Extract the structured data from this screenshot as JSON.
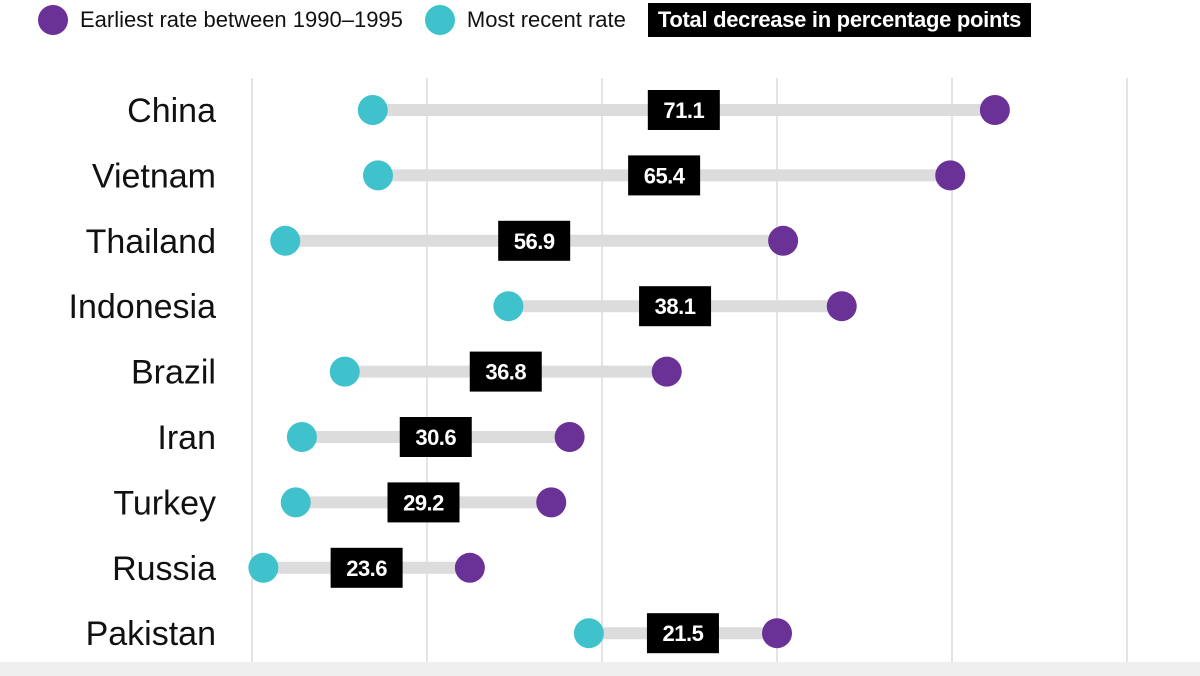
{
  "legend": {
    "earliest_label": "Earliest rate between 1990–1995",
    "recent_label": "Most recent rate",
    "decrease_label": "Total decrease in percentage points"
  },
  "colors": {
    "earliest": "#6a3196",
    "recent": "#40c2cc",
    "connector": "#dcdcdc",
    "label_box": "#000000",
    "gridline": "#dcdcdc"
  },
  "chart_data": {
    "type": "dumbbell",
    "title": "",
    "xlabel": "",
    "ylabel": "",
    "xlim": [
      0,
      100
    ],
    "grid": true,
    "legend_position": "top-left",
    "series_names": [
      "Earliest rate between 1990–1995",
      "Most recent rate"
    ],
    "rows": [
      {
        "country": "China",
        "recent": 13.8,
        "earliest": 84.9,
        "decrease": "71.1"
      },
      {
        "country": "Vietnam",
        "recent": 14.4,
        "earliest": 79.8,
        "decrease": "65.4"
      },
      {
        "country": "Thailand",
        "recent": 3.8,
        "earliest": 60.7,
        "decrease": "56.9"
      },
      {
        "country": "Indonesia",
        "recent": 29.3,
        "earliest": 67.4,
        "decrease": "38.1"
      },
      {
        "country": "Brazil",
        "recent": 10.6,
        "earliest": 47.4,
        "decrease": "36.8"
      },
      {
        "country": "Iran",
        "recent": 5.7,
        "earliest": 36.3,
        "decrease": "30.6"
      },
      {
        "country": "Turkey",
        "recent": 5.0,
        "earliest": 34.2,
        "decrease": "29.2"
      },
      {
        "country": "Russia",
        "recent": 1.3,
        "earliest": 24.9,
        "decrease": "23.6"
      },
      {
        "country": "Pakistan",
        "recent": 38.5,
        "earliest": 60.0,
        "decrease": "21.5"
      }
    ]
  }
}
